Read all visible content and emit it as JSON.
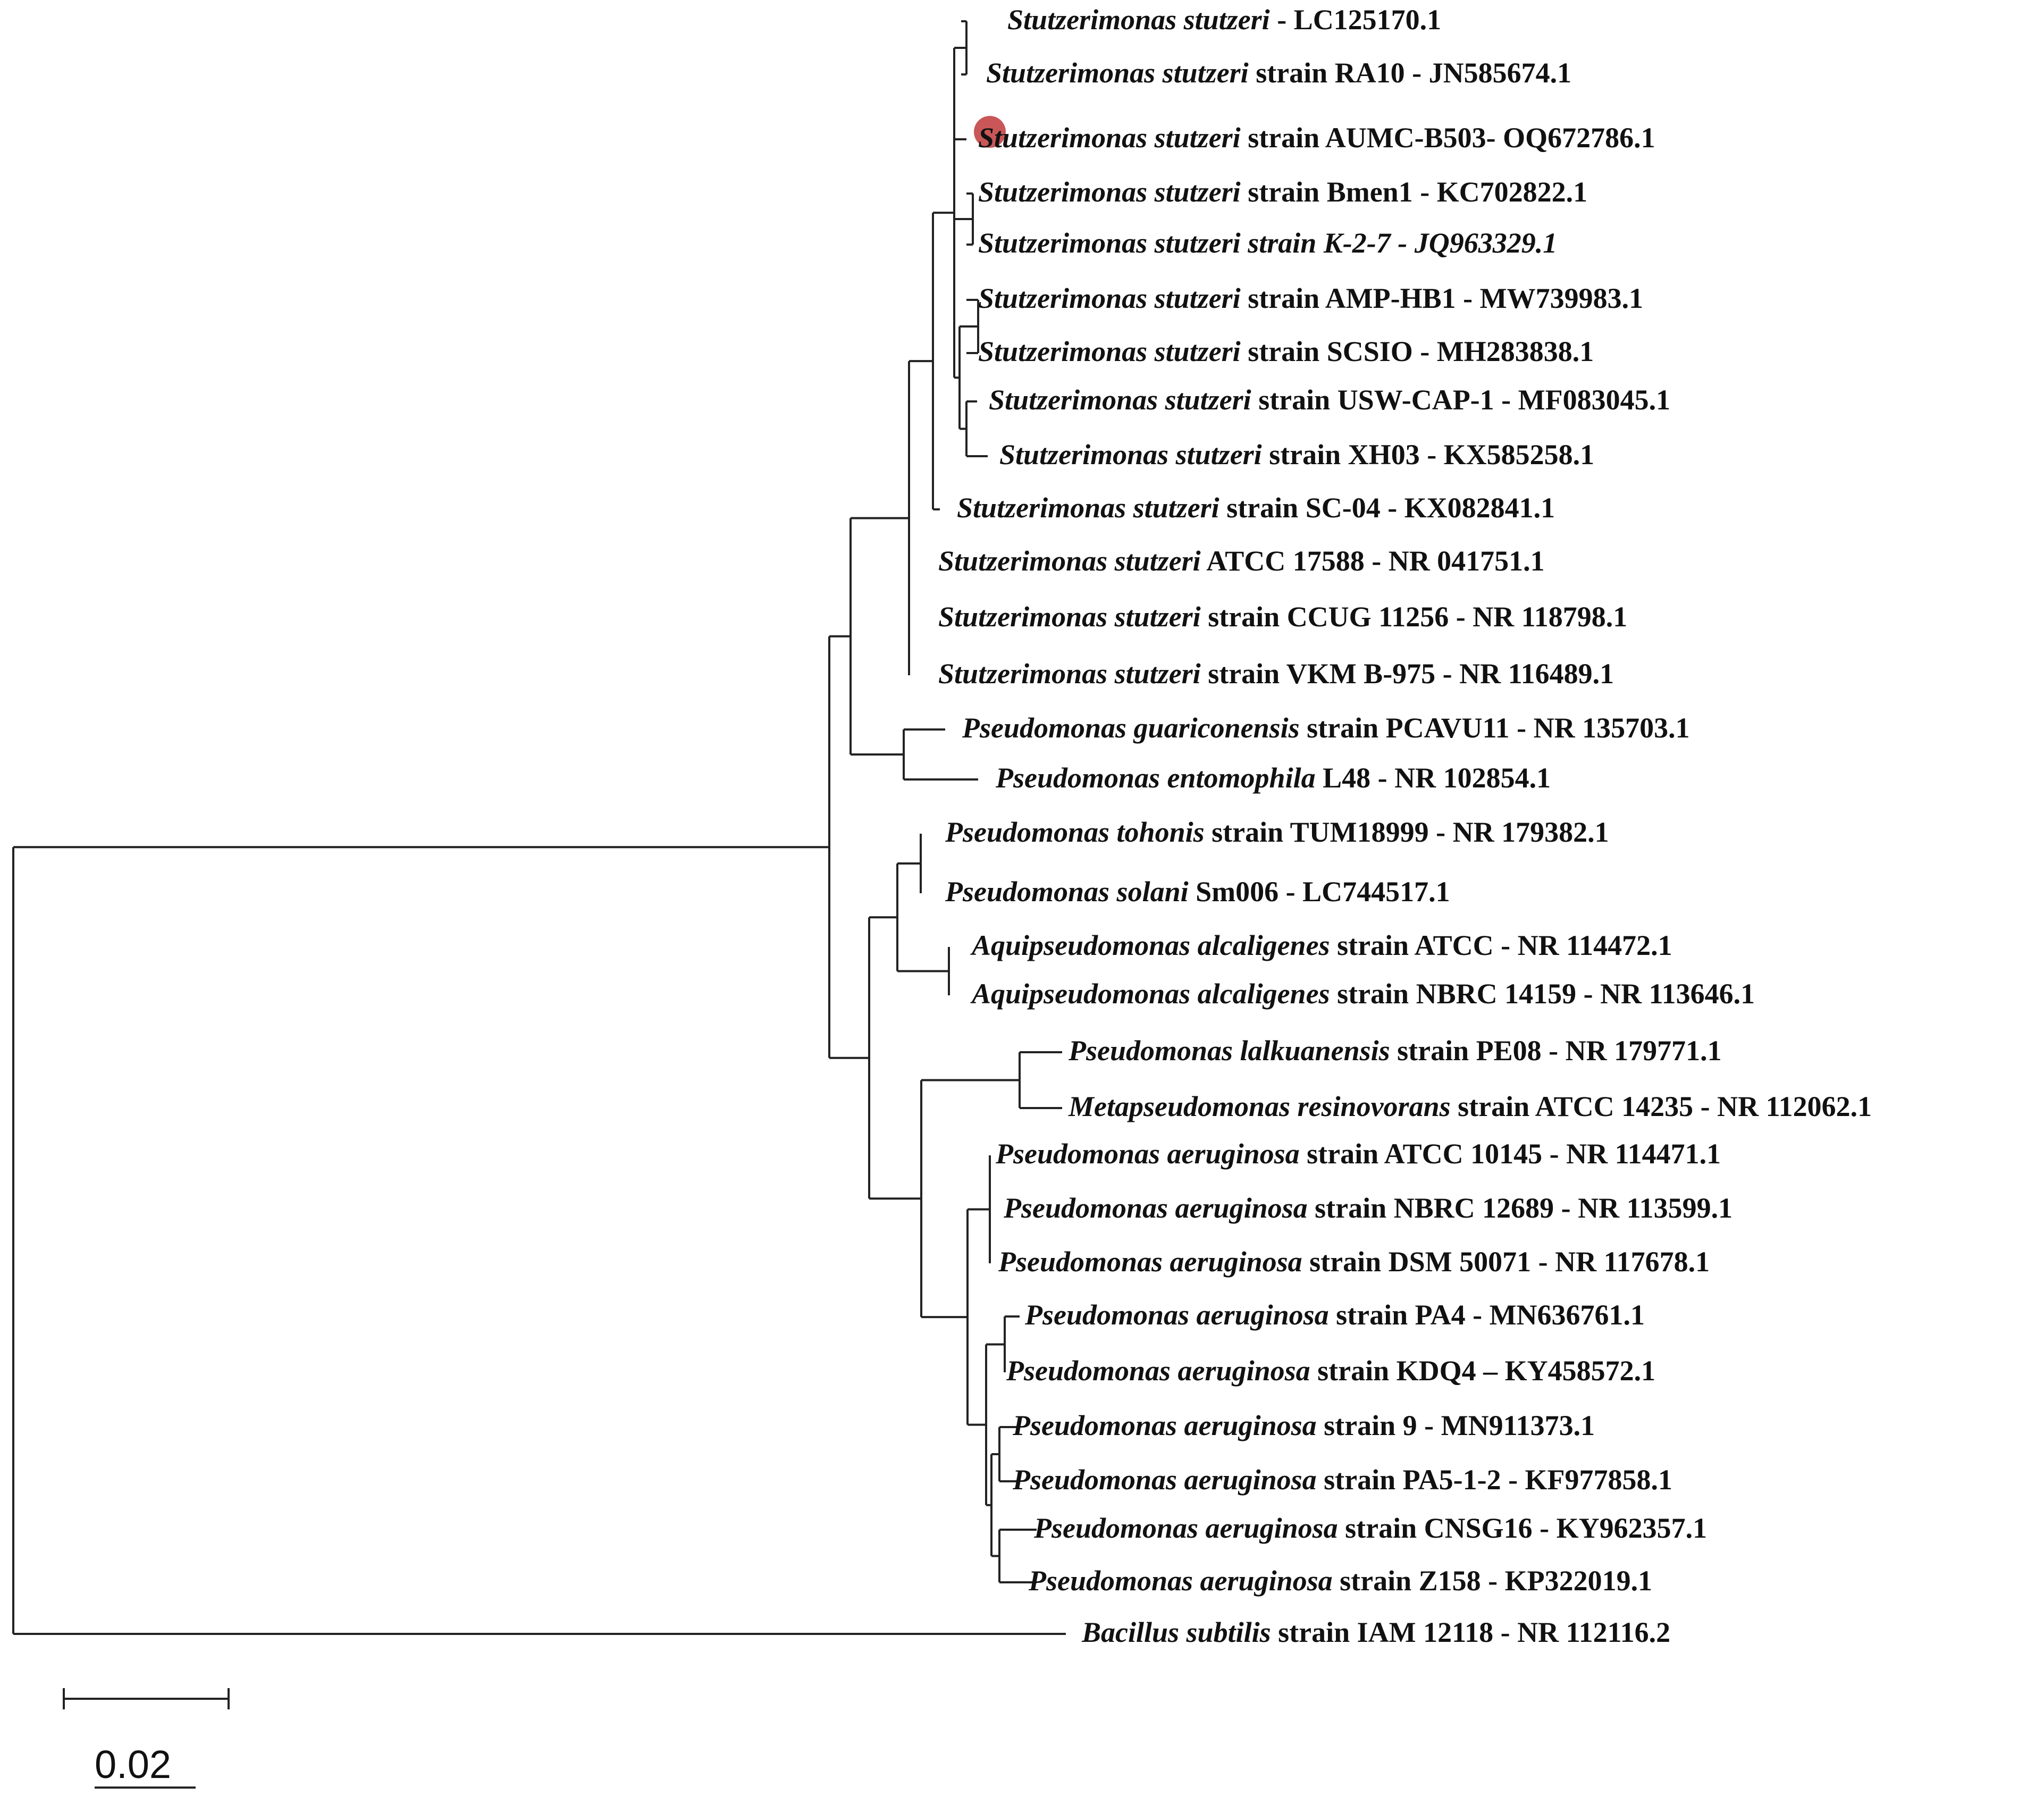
{
  "tree": {
    "leaves": [
      {
        "id": "lc125170",
        "species": "Stutzerimonas stutzeri",
        "rest": " - LC125170.1",
        "rest_italic": false
      },
      {
        "id": "ra10",
        "species": "Stutzerimonas stutzeri",
        "rest": " strain RA10 - JN585674.1",
        "rest_italic": false
      },
      {
        "id": "aumc",
        "species": "Stutzerimonas stutzeri",
        "rest": " strain AUMC-B503- OQ672786.1",
        "rest_italic": false,
        "highlight": true
      },
      {
        "id": "bmen1",
        "species": "Stutzerimonas stutzeri",
        "rest": " strain Bmen1 - KC702822.1",
        "rest_italic": false
      },
      {
        "id": "k27",
        "species": "Stutzerimonas stutzeri",
        "rest": " strain K-2-7 - JQ963329.1",
        "rest_italic": true
      },
      {
        "id": "amphb1",
        "species": "Stutzerimonas stutzeri",
        "rest": " strain AMP-HB1 - MW739983.1",
        "rest_italic": false
      },
      {
        "id": "scsio",
        "species": "Stutzerimonas stutzeri",
        "rest": " strain SCSIO - MH283838.1",
        "rest_italic": false
      },
      {
        "id": "uswcap",
        "species": "Stutzerimonas stutzeri",
        "rest": " strain USW-CAP-1 - MF083045.1",
        "rest_italic": false
      },
      {
        "id": "xh03",
        "species": "Stutzerimonas stutzeri",
        "rest": " strain XH03  - KX585258.1",
        "rest_italic": false
      },
      {
        "id": "sc04",
        "species": "Stutzerimonas stutzeri",
        "rest": " strain SC-04 - KX082841.1",
        "rest_italic": false
      },
      {
        "id": "atcc17588",
        "species": "Stutzerimonas stutzeri",
        "rest": " ATCC 17588 - NR 041751.1",
        "rest_italic": false
      },
      {
        "id": "ccug",
        "species": "Stutzerimonas stutzeri",
        "rest": " strain CCUG 11256 - NR 118798.1",
        "rest_italic": false
      },
      {
        "id": "vkm",
        "species": "Stutzerimonas stutzeri",
        "rest": " strain VKM B-975 - NR 116489.1",
        "rest_italic": false
      },
      {
        "id": "guar",
        "species": "Pseudomonas guariconensis",
        "rest": " strain PCAVU11 - NR 135703.1",
        "rest_italic": false
      },
      {
        "id": "ento",
        "species": "Pseudomonas entomophila",
        "rest": " L48 - NR 102854.1",
        "rest_italic": false
      },
      {
        "id": "toho",
        "species": "Pseudomonas tohonis",
        "rest": " strain TUM18999 - NR 179382.1",
        "rest_italic": false
      },
      {
        "id": "solani",
        "species": "Pseudomonas solani",
        "rest": " Sm006 - LC744517.1",
        "rest_italic": false
      },
      {
        "id": "alc1",
        "species": "Aquipseudomonas alcaligenes",
        "rest": " strain ATCC - NR 114472.1",
        "rest_italic": false
      },
      {
        "id": "alc2",
        "species": "Aquipseudomonas alcaligenes",
        "rest": " strain NBRC 14159 - NR 113646.1",
        "rest_italic": false
      },
      {
        "id": "lalk",
        "species": "Pseudomonas lalkuanensis",
        "rest": " strain PE08 - NR 179771.1",
        "rest_italic": false
      },
      {
        "id": "resin",
        "species": "Metapseudomonas resinovorans",
        "rest": " strain ATCC 14235 - NR 112062.1",
        "rest_italic": false
      },
      {
        "id": "pa10145",
        "species": "Pseudomonas aeruginosa",
        "rest": " strain ATCC 10145 - NR 114471.1",
        "rest_italic": false
      },
      {
        "id": "pa12689",
        "species": "Pseudomonas aeruginosa",
        "rest": " strain NBRC 12689 - NR 113599.1",
        "rest_italic": false
      },
      {
        "id": "pa50071",
        "species": "Pseudomonas aeruginosa",
        "rest": " strain DSM 50071 - NR 117678.1",
        "rest_italic": false
      },
      {
        "id": "pa4",
        "species": "Pseudomonas aeruginosa",
        "rest": " strain PA4 - MN636761.1",
        "rest_italic": false
      },
      {
        "id": "kdq4",
        "species": "Pseudomonas aeruginosa",
        "rest": " strain KDQ4 – KY458572.1",
        "rest_italic": false
      },
      {
        "id": "pa9",
        "species": "Pseudomonas aeruginosa",
        "rest": " strain 9 - MN911373.1",
        "rest_italic": false
      },
      {
        "id": "pa512",
        "species": "Pseudomonas aeruginosa",
        "rest": " strain PA5-1-2 - KF977858.1",
        "rest_italic": false
      },
      {
        "id": "cnsg16",
        "species": "Pseudomonas aeruginosa",
        "rest": " strain CNSG16 - KY962357.1",
        "rest_italic": false
      },
      {
        "id": "z158",
        "species": "Pseudomonas aeruginosa",
        "rest": " strain Z158 - KP322019.1",
        "rest_italic": false
      },
      {
        "id": "bsub",
        "species": "Bacillus subtilis",
        "rest": " strain IAM 12118 - NR 112116.2",
        "rest_italic": false
      }
    ],
    "scale_bar": {
      "label": "0.02",
      "length": 0.02
    },
    "colors": {
      "branch": "#222222",
      "highlight": "#c0393b",
      "text": "#111111"
    }
  }
}
